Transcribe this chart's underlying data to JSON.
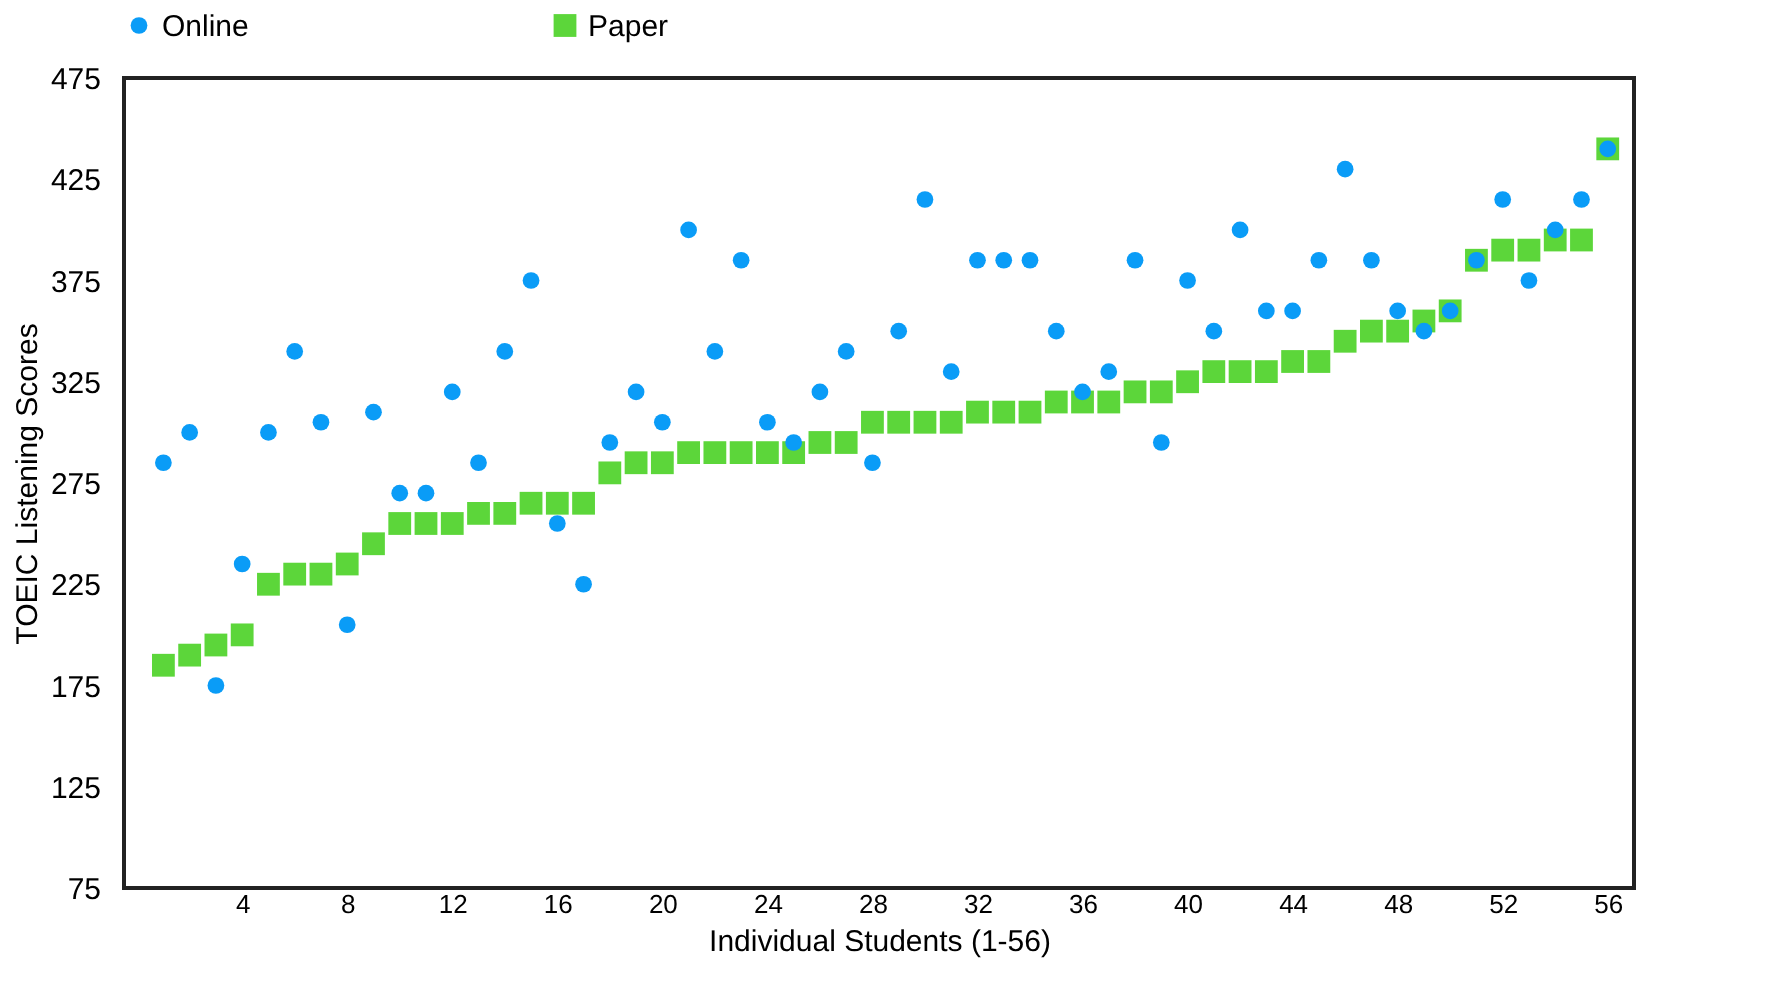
{
  "chart_data": {
    "type": "scatter",
    "xlabel": "Individual Students (1-56)",
    "ylabel": "TOEIC Listening Scores",
    "x": [
      1,
      2,
      3,
      4,
      5,
      6,
      7,
      8,
      9,
      10,
      11,
      12,
      13,
      14,
      15,
      16,
      17,
      18,
      19,
      20,
      21,
      22,
      23,
      24,
      25,
      26,
      27,
      28,
      29,
      30,
      31,
      32,
      33,
      34,
      35,
      36,
      37,
      38,
      39,
      40,
      41,
      42,
      43,
      44,
      45,
      46,
      47,
      48,
      49,
      50,
      51,
      52,
      53,
      54,
      55,
      56
    ],
    "series": [
      {
        "name": "Online",
        "color": "#0a9cf7",
        "marker": "circle",
        "values": [
          285,
          300,
          175,
          235,
          300,
          340,
          305,
          205,
          310,
          270,
          270,
          320,
          285,
          340,
          375,
          255,
          225,
          295,
          320,
          305,
          400,
          340,
          385,
          305,
          295,
          320,
          340,
          285,
          350,
          415,
          330,
          385,
          385,
          385,
          350,
          320,
          330,
          385,
          295,
          375,
          350,
          400,
          360,
          360,
          385,
          430,
          385,
          360,
          350,
          360,
          385,
          415,
          375,
          400,
          415,
          440
        ]
      },
      {
        "name": "Paper",
        "color": "#5cd63a",
        "marker": "square",
        "values": [
          185,
          190,
          195,
          200,
          225,
          230,
          230,
          235,
          245,
          255,
          255,
          255,
          260,
          260,
          265,
          265,
          265,
          280,
          285,
          285,
          290,
          290,
          290,
          290,
          290,
          295,
          295,
          305,
          305,
          305,
          305,
          310,
          310,
          310,
          315,
          315,
          315,
          320,
          320,
          325,
          330,
          330,
          330,
          335,
          335,
          345,
          350,
          350,
          355,
          360,
          385,
          390,
          390,
          395,
          395,
          440
        ]
      }
    ],
    "xlim": [
      -0.5,
      57
    ],
    "xticks": [
      4,
      8,
      12,
      16,
      20,
      24,
      28,
      32,
      36,
      40,
      44,
      48,
      52,
      56
    ],
    "ylim": [
      75,
      475
    ],
    "yticks": [
      75,
      125,
      175,
      225,
      275,
      325,
      375,
      425,
      475
    ],
    "grid": false,
    "legend": "top"
  }
}
